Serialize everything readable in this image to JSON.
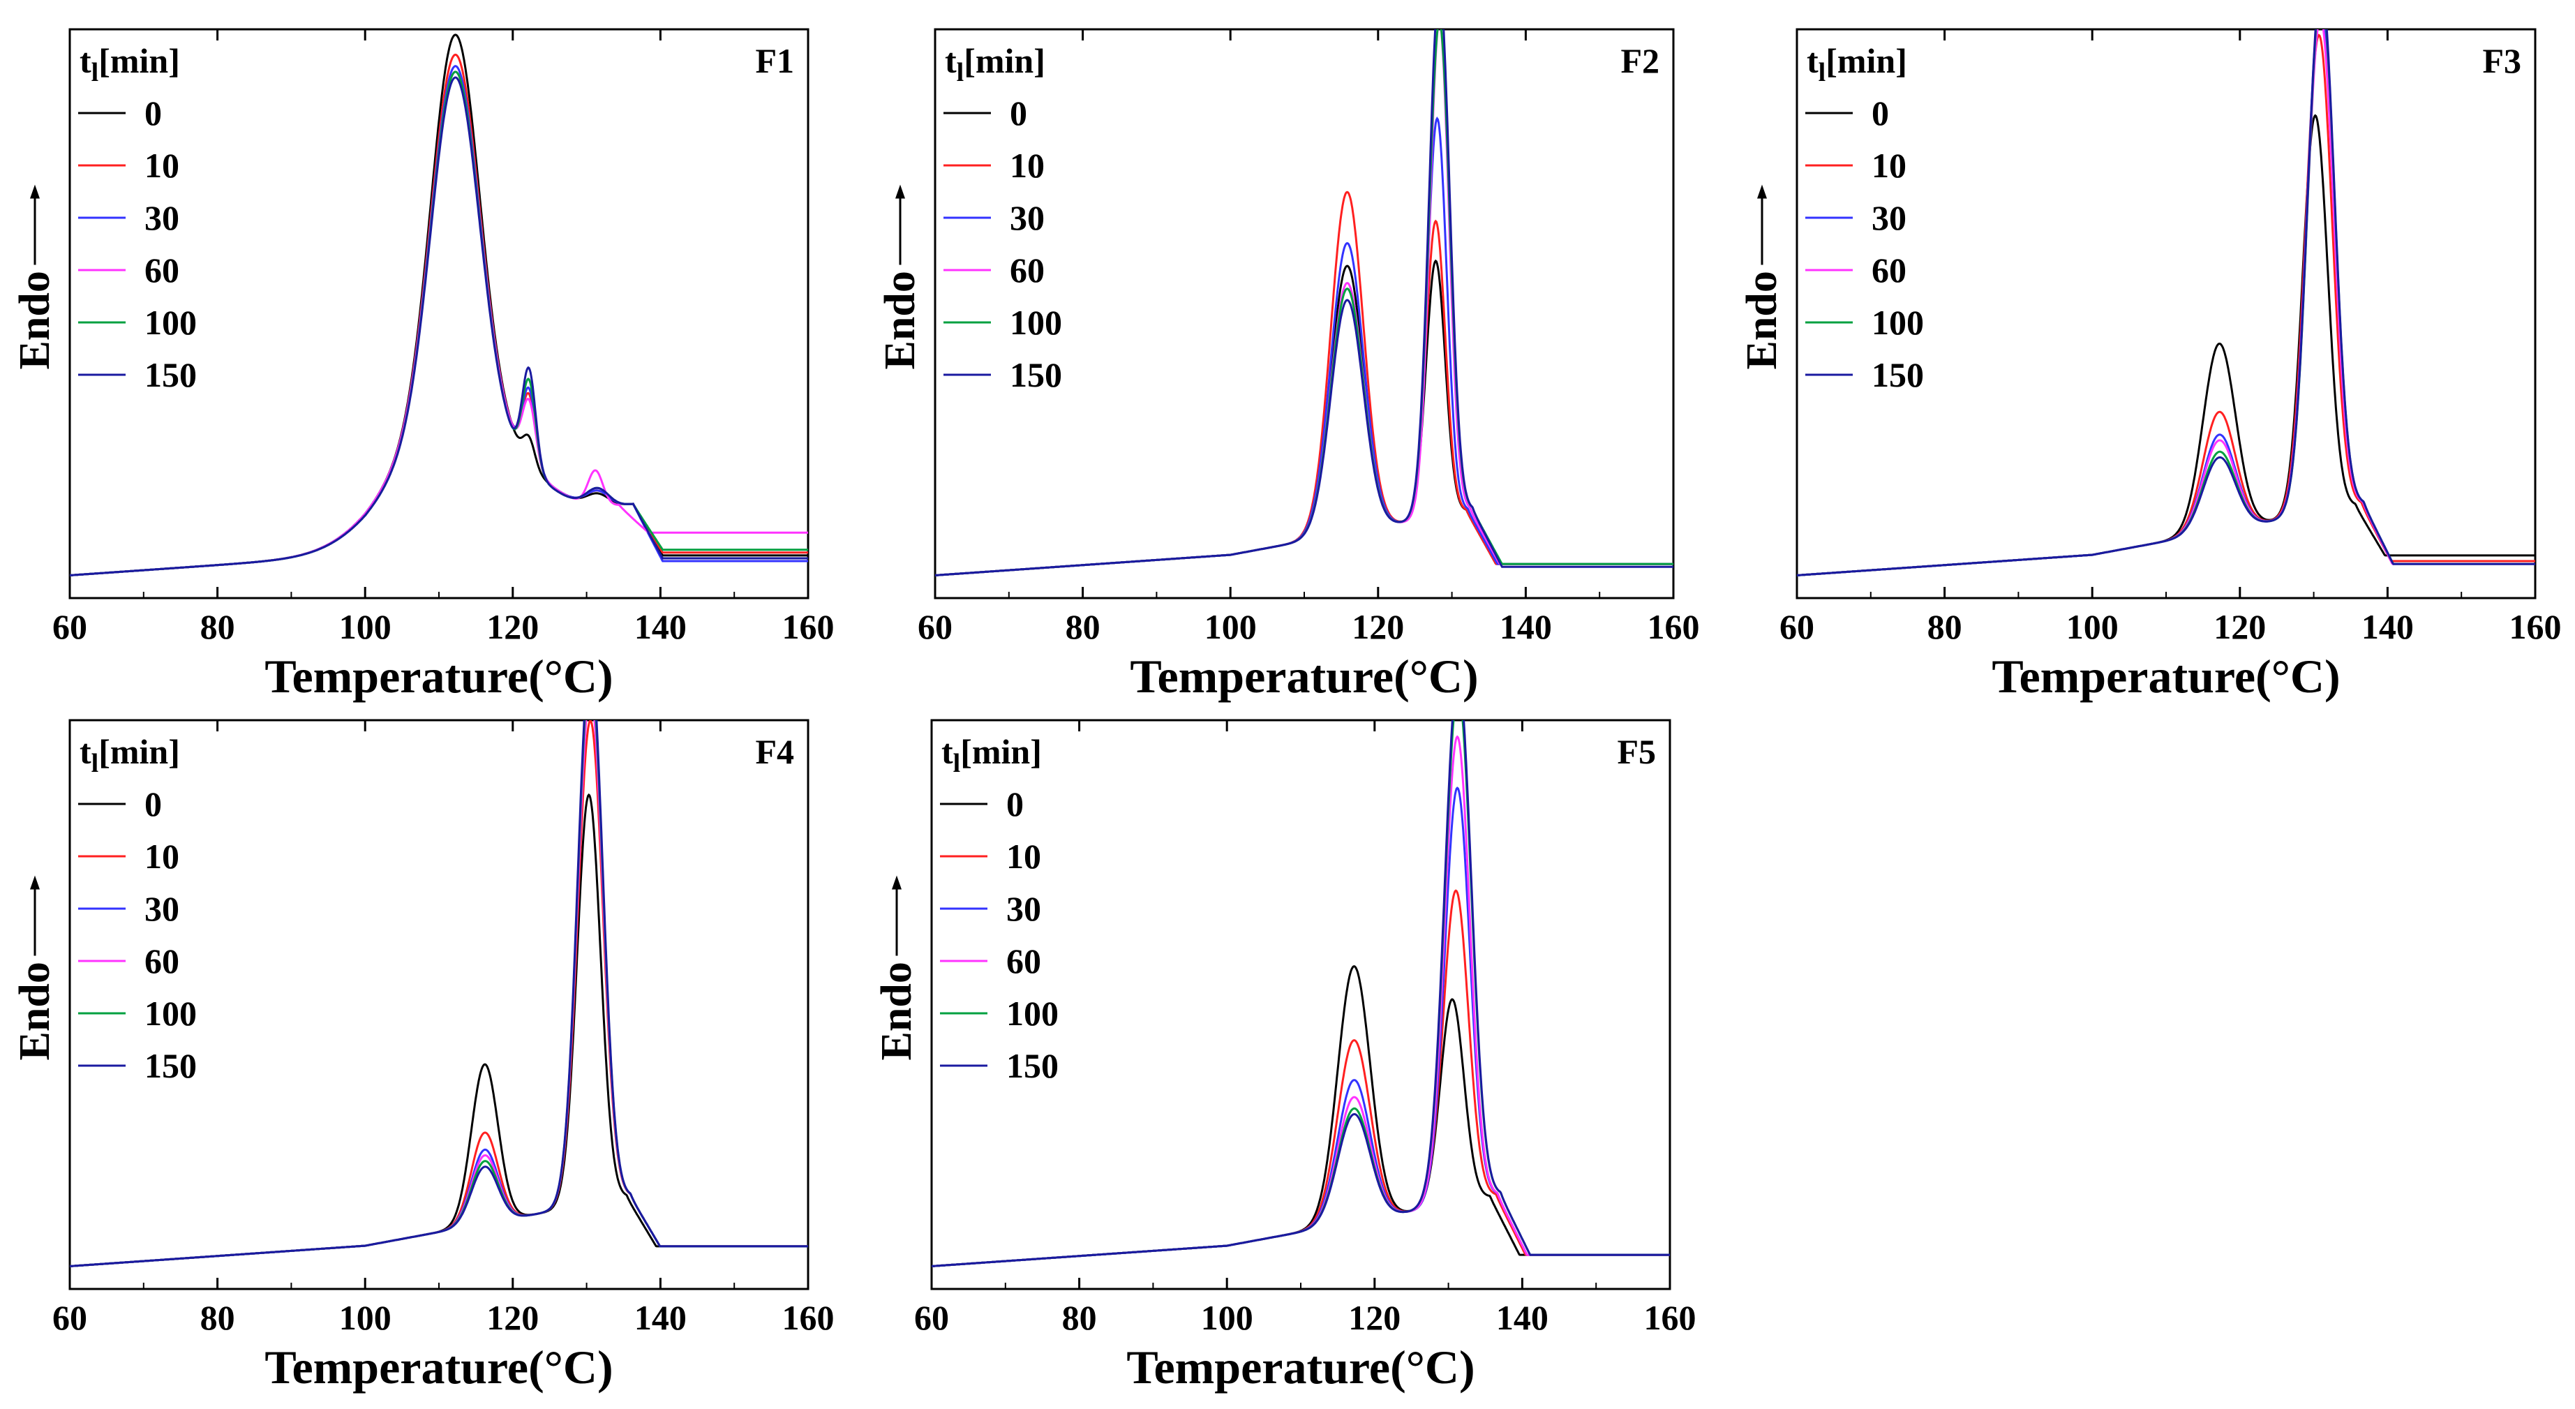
{
  "figure": {
    "legend_title_main": "t",
    "legend_title_sub": "l",
    "legend_title_unit": "[min]"
  },
  "series_colors": [
    "#000000",
    "#ff2020",
    "#3333ff",
    "#ff33ff",
    "#00a040",
    "#1a1aa0"
  ],
  "chart_data": [
    {
      "type": "line",
      "title": "F1",
      "xlabel": "Temperature(°C)",
      "ylabel": "Endo",
      "xlim": [
        60,
        160
      ],
      "ylim": [
        0,
        1
      ],
      "xticks": [
        60,
        80,
        100,
        120,
        140,
        160
      ],
      "legend_title": "tl[min]",
      "legend": "top-left",
      "series": [
        {
          "name": "0",
          "tail": 0.075,
          "peaks": [
            [
              112.2,
              0.655,
              3.2
            ],
            [
              112.2,
              0.23,
              8.0
            ],
            [
              122.2,
              0.045,
              0.8
            ],
            [
              131.5,
              0.02,
              1.5
            ]
          ]
        },
        {
          "name": "10",
          "tail": 0.08,
          "peaks": [
            [
              112.2,
              0.62,
              3.2
            ],
            [
              112.2,
              0.23,
              8.0
            ],
            [
              122.2,
              0.12,
              0.9
            ],
            [
              131.5,
              0.025,
              1.5
            ]
          ]
        },
        {
          "name": "30",
          "tail": 0.065,
          "peaks": [
            [
              112.2,
              0.6,
              3.2
            ],
            [
              112.2,
              0.23,
              8.0
            ],
            [
              122.2,
              0.13,
              0.9
            ],
            [
              131.5,
              0.025,
              1.5
            ]
          ]
        },
        {
          "name": "60",
          "tail": 0.115,
          "peaks": [
            [
              112.2,
              0.59,
              3.2
            ],
            [
              112.2,
              0.23,
              8.0
            ],
            [
              122.2,
              0.11,
              0.9
            ],
            [
              131.2,
              0.06,
              1.0
            ]
          ]
        },
        {
          "name": "100",
          "tail": 0.085,
          "peaks": [
            [
              112.2,
              0.6,
              3.2
            ],
            [
              112.2,
              0.22,
              8.0
            ],
            [
              122.2,
              0.15,
              0.9
            ],
            [
              131.5,
              0.03,
              1.5
            ]
          ]
        },
        {
          "name": "150",
          "tail": 0.07,
          "peaks": [
            [
              112.2,
              0.59,
              3.2
            ],
            [
              112.2,
              0.22,
              8.0
            ],
            [
              122.2,
              0.17,
              0.9
            ],
            [
              131.5,
              0.03,
              1.5
            ]
          ]
        }
      ]
    },
    {
      "type": "line",
      "title": "F2",
      "xlabel": "Temperature(°C)",
      "ylabel": "Endo",
      "xlim": [
        60,
        160
      ],
      "ylim": [
        0,
        1
      ],
      "xticks": [
        60,
        80,
        100,
        120,
        140,
        160
      ],
      "legend_title": "tl[min]",
      "legend": "top-left",
      "series": [
        {
          "name": "0",
          "tail": 0.06,
          "peaks": [
            [
              115.8,
              0.47,
              2.2
            ],
            [
              127.8,
              0.45,
              1.3
            ]
          ]
        },
        {
          "name": "10",
          "tail": 0.06,
          "peaks": [
            [
              115.8,
              0.6,
              2.2
            ],
            [
              127.8,
              0.52,
              1.3
            ]
          ]
        },
        {
          "name": "30",
          "tail": 0.06,
          "peaks": [
            [
              115.8,
              0.51,
              2.2
            ],
            [
              128.0,
              0.7,
              1.3
            ]
          ]
        },
        {
          "name": "60",
          "tail": 0.06,
          "peaks": [
            [
              115.8,
              0.44,
              2.2
            ],
            [
              128.3,
              0.87,
              1.3
            ]
          ]
        },
        {
          "name": "100",
          "tail": 0.06,
          "peaks": [
            [
              115.8,
              0.43,
              2.2
            ],
            [
              128.3,
              0.87,
              1.4
            ]
          ]
        },
        {
          "name": "150",
          "tail": 0.055,
          "peaks": [
            [
              115.8,
              0.41,
              2.2
            ],
            [
              128.3,
              0.93,
              1.4
            ]
          ]
        }
      ]
    },
    {
      "type": "line",
      "title": "F3",
      "xlabel": "Temperature(°C)",
      "ylabel": "Endo",
      "xlim": [
        60,
        160
      ],
      "ylim": [
        0,
        1
      ],
      "xticks": [
        60,
        80,
        100,
        120,
        140,
        160
      ],
      "legend_title": "tl[min]",
      "legend": "top-left",
      "series": [
        {
          "name": "0",
          "tail": 0.075,
          "peaks": [
            [
              117.2,
              0.33,
              2.2
            ],
            [
              130.2,
              0.7,
              1.7
            ]
          ]
        },
        {
          "name": "10",
          "tail": 0.065,
          "peaks": [
            [
              117.2,
              0.21,
              2.2
            ],
            [
              130.7,
              0.84,
              1.8
            ]
          ]
        },
        {
          "name": "30",
          "tail": 0.06,
          "peaks": [
            [
              117.2,
              0.17,
              2.2
            ],
            [
              130.9,
              0.9,
              1.8
            ]
          ]
        },
        {
          "name": "60",
          "tail": 0.06,
          "peaks": [
            [
              117.2,
              0.16,
              2.2
            ],
            [
              130.9,
              0.87,
              1.8
            ]
          ]
        },
        {
          "name": "100",
          "tail": 0.06,
          "peaks": [
            [
              117.2,
              0.14,
              2.2
            ],
            [
              131.0,
              0.92,
              1.8
            ]
          ]
        },
        {
          "name": "150",
          "tail": 0.06,
          "peaks": [
            [
              117.2,
              0.13,
              2.2
            ],
            [
              131.0,
              0.93,
              1.8
            ]
          ]
        }
      ]
    },
    {
      "type": "line",
      "title": "F4",
      "xlabel": "Temperature(°C)",
      "ylabel": "Endo",
      "xlim": [
        60,
        160
      ],
      "ylim": [
        0,
        1
      ],
      "xticks": [
        60,
        80,
        100,
        120,
        140,
        160
      ],
      "legend_title": "tl[min]",
      "legend": "top-left",
      "series": [
        {
          "name": "0",
          "tail": 0.075,
          "peaks": [
            [
              116.2,
              0.28,
              1.8
            ],
            [
              130.3,
              0.72,
              1.6
            ]
          ]
        },
        {
          "name": "10",
          "tail": 0.075,
          "peaks": [
            [
              116.2,
              0.16,
              1.8
            ],
            [
              130.5,
              0.85,
              1.7
            ]
          ]
        },
        {
          "name": "30",
          "tail": 0.075,
          "peaks": [
            [
              116.2,
              0.13,
              1.8
            ],
            [
              130.5,
              0.92,
              1.7
            ]
          ]
        },
        {
          "name": "60",
          "tail": 0.075,
          "peaks": [
            [
              116.2,
              0.12,
              1.8
            ],
            [
              130.5,
              0.9,
              1.7
            ]
          ]
        },
        {
          "name": "100",
          "tail": 0.075,
          "peaks": [
            [
              116.2,
              0.11,
              1.8
            ],
            [
              130.5,
              0.94,
              1.7
            ]
          ]
        },
        {
          "name": "150",
          "tail": 0.075,
          "peaks": [
            [
              116.2,
              0.1,
              1.8
            ],
            [
              130.5,
              0.96,
              1.7
            ]
          ]
        }
      ]
    },
    {
      "type": "line",
      "title": "F5",
      "xlabel": "Temperature(°C)",
      "ylabel": "Endo",
      "xlim": [
        60,
        160
      ],
      "ylim": [
        0,
        1
      ],
      "xticks": [
        60,
        80,
        100,
        120,
        140,
        160
      ],
      "legend_title": "tl[min]",
      "legend": "top-left",
      "series": [
        {
          "name": "0",
          "tail": 0.06,
          "peaks": [
            [
              117.2,
              0.45,
              2.2
            ],
            [
              130.5,
              0.36,
              1.6
            ]
          ]
        },
        {
          "name": "10",
          "tail": 0.06,
          "peaks": [
            [
              117.2,
              0.32,
              2.2
            ],
            [
              131.0,
              0.55,
              1.7
            ]
          ]
        },
        {
          "name": "30",
          "tail": 0.06,
          "peaks": [
            [
              117.2,
              0.25,
              2.2
            ],
            [
              131.2,
              0.73,
              1.7
            ]
          ]
        },
        {
          "name": "60",
          "tail": 0.06,
          "peaks": [
            [
              117.2,
              0.22,
              2.2
            ],
            [
              131.2,
              0.82,
              1.7
            ]
          ]
        },
        {
          "name": "100",
          "tail": 0.06,
          "peaks": [
            [
              117.2,
              0.2,
              2.2
            ],
            [
              131.3,
              0.9,
              1.8
            ]
          ]
        },
        {
          "name": "150",
          "tail": 0.06,
          "peaks": [
            [
              117.2,
              0.19,
              2.2
            ],
            [
              131.3,
              0.93,
              1.8
            ]
          ]
        }
      ]
    }
  ]
}
